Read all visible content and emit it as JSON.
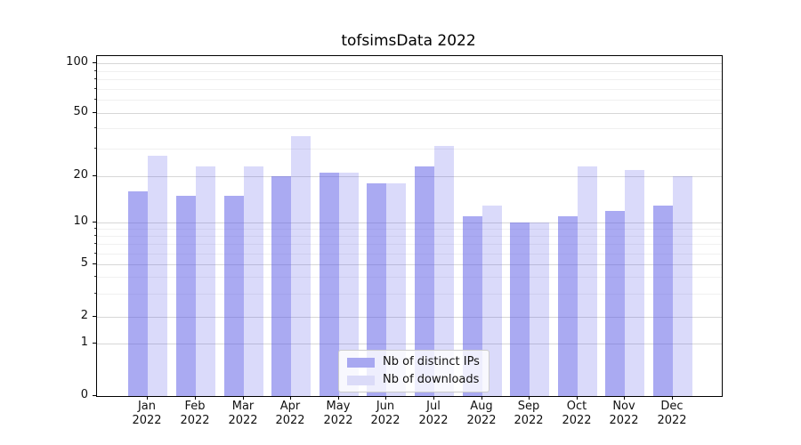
{
  "chart_data": {
    "type": "bar",
    "title": "tofsimsData 2022",
    "categories": [
      "Jan 2022",
      "Feb 2022",
      "Mar 2022",
      "Apr 2022",
      "May 2022",
      "Jun 2022",
      "Jul 2022",
      "Aug 2022",
      "Sep 2022",
      "Oct 2022",
      "Nov 2022",
      "Dec 2022"
    ],
    "series": [
      {
        "name": "Nb of distinct IPs",
        "color": "rgba(85,85,230,0.5)",
        "swatch_color": "#a8a8f1",
        "values": [
          16,
          15,
          15,
          20,
          21,
          18,
          23,
          11,
          10,
          11,
          12,
          13
        ]
      },
      {
        "name": "Nb of downloads",
        "color": "rgba(85,85,230,0.22)",
        "swatch_color": "#dbdbf8",
        "values": [
          27,
          23,
          23,
          36,
          21,
          18,
          31,
          13,
          10,
          23,
          22,
          20
        ]
      }
    ],
    "yscale": "symlog",
    "yticks": [
      0,
      1,
      2,
      5,
      10,
      20,
      50,
      100
    ],
    "yticks_minor": [
      3,
      4,
      6,
      7,
      8,
      9,
      30,
      40,
      60,
      70,
      80,
      90
    ],
    "ylim": [
      0,
      112
    ],
    "grid": "horizontal major+minor",
    "legend_position": "lower center"
  },
  "colors": {
    "grid_major": "#d7d7d7",
    "grid_minor": "#f0f0f0",
    "spine": "#000000",
    "legend_border": "#cccccc"
  }
}
